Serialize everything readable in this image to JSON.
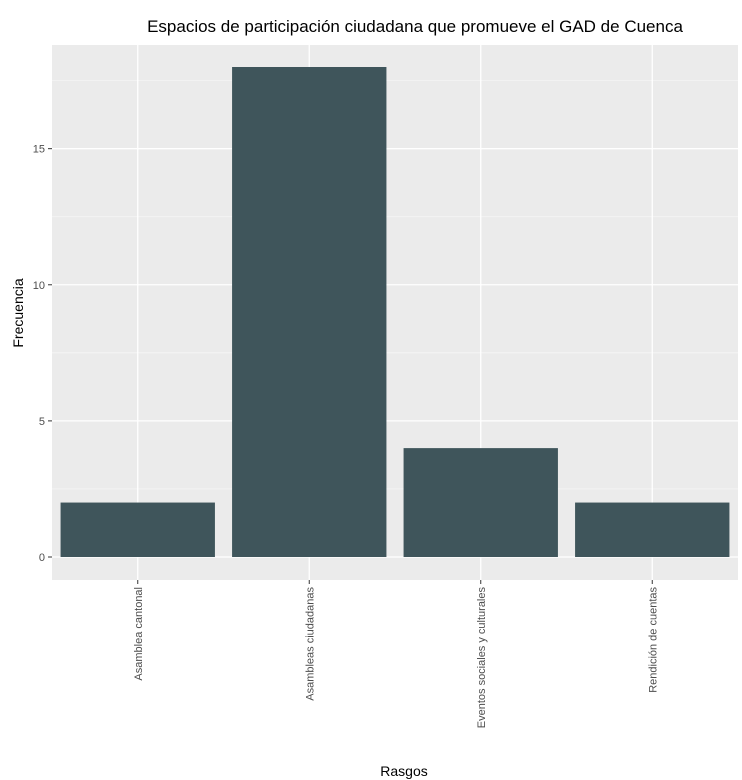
{
  "chart_data": {
    "type": "bar",
    "title": "Espacios de participación ciudadana que promueve el GAD de Cuenca",
    "xlabel": "Rasgos",
    "ylabel": "Frecuencia",
    "categories": [
      "Asamblea cantonal",
      "Asambleas ciudadanas",
      "Eventos sociales y culturales",
      "Rendición de cuentas"
    ],
    "values": [
      2,
      18,
      4,
      2
    ],
    "ylim": [
      0,
      18.9
    ],
    "yticks": [
      0,
      5,
      10,
      15
    ],
    "grid": true,
    "legend": "none",
    "colors": {
      "bar": "#3f555b",
      "panel_background": "#ebebeb",
      "grid_major": "#ffffff",
      "grid_minor": "#f5f5f5",
      "page_background": "#ffffff"
    }
  }
}
